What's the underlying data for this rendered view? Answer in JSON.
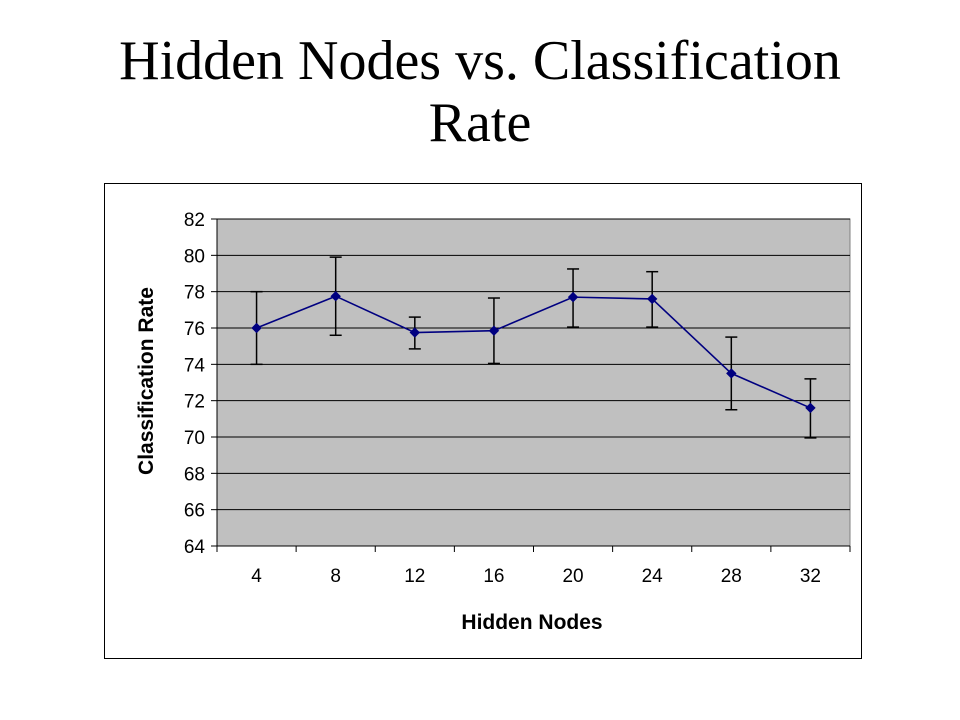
{
  "slide": {
    "title_line1": "Hidden Nodes vs. Classification",
    "title_line2": "Rate"
  },
  "chart_data": {
    "type": "line",
    "title": "",
    "xlabel": "Hidden Nodes",
    "ylabel": "Classification Rate",
    "categories": [
      "4",
      "8",
      "12",
      "16",
      "20",
      "24",
      "28",
      "32"
    ],
    "series": [
      {
        "values": [
          76.0,
          77.75,
          75.75,
          75.85,
          77.7,
          77.6,
          73.5,
          71.6
        ],
        "error_upper": [
          78.0,
          79.9,
          76.6,
          77.65,
          79.25,
          79.1,
          75.5,
          73.2
        ],
        "error_lower": [
          74.0,
          75.6,
          74.85,
          74.05,
          76.05,
          76.05,
          71.5,
          69.95
        ]
      }
    ],
    "ylim": [
      64,
      82
    ],
    "yticks": [
      "64",
      "66",
      "68",
      "70",
      "72",
      "74",
      "76",
      "78",
      "80",
      "82"
    ],
    "grid": true,
    "legend": "none",
    "colors": {
      "plot_background": "#c0c0c0",
      "line": "#000080",
      "marker": "#000080",
      "error_bar": "#000000",
      "gridline": "#000000"
    }
  }
}
